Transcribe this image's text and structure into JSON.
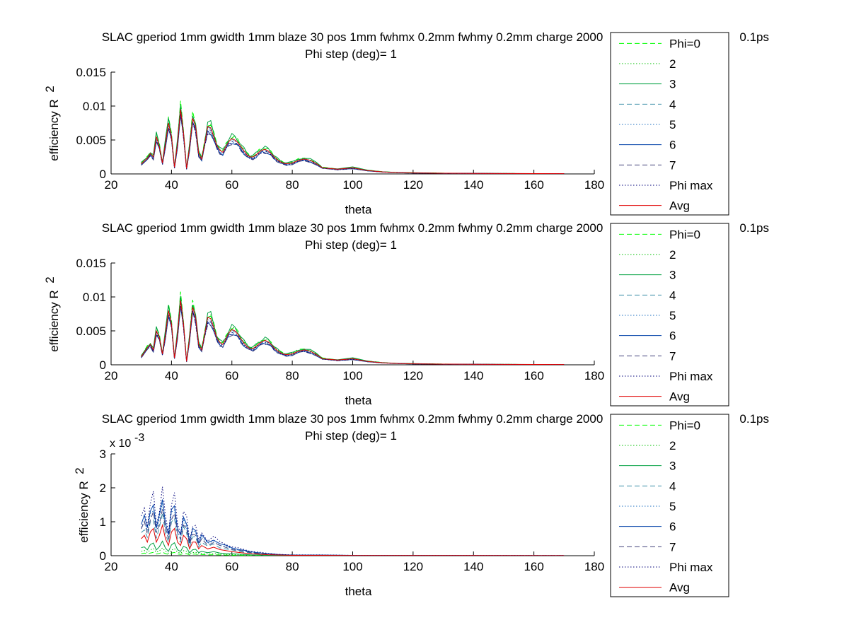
{
  "colors": {
    "phi0": "#00ff00",
    "phi2": "#00bf00",
    "phi3": "#00a040",
    "phi4": "#3a8fa8",
    "phi5": "#1e6fc0",
    "phi6": "#0040a8",
    "phi7": "#40407a",
    "phimax": "#00007a",
    "avg": "#e00000"
  },
  "chart_data": [
    {
      "type": "line",
      "title": "SLAC gperiod 1mm gwidth 1mm blaze 30 pos 1mm fwhmx 0.2mm fwhmy 0.2mm charge 2000",
      "title_tail": "0.1ps",
      "subtitle": "Phi step (deg)= 1",
      "xlabel": "theta",
      "ylabel": "efficiency R",
      "ylabel_sup": "2",
      "xlim": [
        20,
        180
      ],
      "ylim": [
        0,
        0.015
      ],
      "xticks": [
        "20",
        "40",
        "60",
        "80",
        "100",
        "120",
        "140",
        "160",
        "180"
      ],
      "yticks": [
        "0",
        "0.005",
        "0.01",
        "0.015"
      ],
      "exponent_label": "",
      "legend": {
        "placement": "outside-right",
        "entries": [
          "Phi=0",
          "2",
          "3",
          "4",
          "5",
          "6",
          "7",
          "Phi max",
          "Avg"
        ]
      },
      "x": [
        30,
        32,
        33,
        34,
        35,
        36,
        37,
        38,
        39,
        40,
        41,
        42,
        43,
        44,
        45,
        46,
        47,
        48,
        49,
        50,
        51,
        52,
        53,
        54,
        55,
        56,
        57,
        58,
        59,
        60,
        61,
        62,
        63,
        64,
        65,
        66,
        67,
        68,
        69,
        70,
        71,
        72,
        73,
        74,
        75,
        76,
        77,
        78,
        80,
        82,
        84,
        86,
        88,
        90,
        95,
        100,
        105,
        110,
        115,
        120,
        130,
        140,
        150,
        160,
        170
      ],
      "series": [
        {
          "name": "Avg",
          "values": [
            0.0015,
            0.0023,
            0.003,
            0.0025,
            0.0055,
            0.004,
            0.0016,
            0.0045,
            0.0075,
            0.0055,
            0.001,
            0.0045,
            0.0095,
            0.006,
            0.0008,
            0.004,
            0.0082,
            0.007,
            0.003,
            0.0022,
            0.0045,
            0.007,
            0.0068,
            0.0055,
            0.0042,
            0.0035,
            0.0032,
            0.004,
            0.0048,
            0.0052,
            0.005,
            0.0046,
            0.004,
            0.0034,
            0.0028,
            0.0025,
            0.0025,
            0.0028,
            0.0032,
            0.0035,
            0.0036,
            0.0034,
            0.003,
            0.0025,
            0.0021,
            0.0018,
            0.0016,
            0.0015,
            0.0016,
            0.002,
            0.0022,
            0.002,
            0.0015,
            0.0009,
            0.0007,
            0.0009,
            0.0005,
            0.0003,
            0.0002,
            0.00015,
            0.0001,
            8e-05,
            6e-05,
            5e-05,
            4e-05
          ]
        }
      ]
    },
    {
      "type": "line",
      "title": "SLAC gperiod 1mm gwidth 1mm blaze 30 pos 1mm fwhmx 0.2mm fwhmy 0.2mm charge 2000",
      "title_tail": "0.1ps",
      "subtitle": "Phi step (deg)= 1",
      "xlabel": "theta",
      "ylabel": "efficiency R",
      "ylabel_sup": "2",
      "xlim": [
        20,
        180
      ],
      "ylim": [
        0,
        0.015
      ],
      "xticks": [
        "20",
        "40",
        "60",
        "80",
        "100",
        "120",
        "140",
        "160",
        "180"
      ],
      "yticks": [
        "0",
        "0.005",
        "0.01",
        "0.015"
      ],
      "exponent_label": "",
      "legend": {
        "placement": "outside-right",
        "entries": [
          "Phi=0",
          "2",
          "3",
          "4",
          "5",
          "6",
          "7",
          "Phi max",
          "Avg"
        ]
      },
      "x": [
        30,
        32,
        33,
        34,
        35,
        36,
        37,
        38,
        39,
        40,
        41,
        42,
        43,
        44,
        45,
        46,
        47,
        48,
        49,
        50,
        51,
        52,
        53,
        54,
        55,
        56,
        57,
        58,
        59,
        60,
        61,
        62,
        63,
        64,
        65,
        66,
        67,
        68,
        69,
        70,
        71,
        72,
        73,
        74,
        75,
        76,
        77,
        78,
        80,
        82,
        84,
        86,
        88,
        90,
        95,
        100,
        105,
        110,
        115,
        120,
        130,
        140,
        150,
        160,
        170
      ],
      "series": [
        {
          "name": "Avg",
          "values": [
            0.0012,
            0.0025,
            0.003,
            0.0022,
            0.005,
            0.004,
            0.0016,
            0.0045,
            0.008,
            0.006,
            0.001,
            0.0045,
            0.0095,
            0.006,
            0.0005,
            0.004,
            0.0085,
            0.007,
            0.003,
            0.0022,
            0.0045,
            0.007,
            0.0068,
            0.0055,
            0.004,
            0.0033,
            0.003,
            0.0038,
            0.0047,
            0.0052,
            0.005,
            0.0045,
            0.0038,
            0.0032,
            0.0027,
            0.0024,
            0.0024,
            0.0027,
            0.0031,
            0.0034,
            0.0036,
            0.0034,
            0.003,
            0.0025,
            0.0021,
            0.0018,
            0.0016,
            0.0015,
            0.0016,
            0.002,
            0.0022,
            0.002,
            0.0015,
            0.0009,
            0.0007,
            0.0009,
            0.0005,
            0.0003,
            0.0002,
            0.00015,
            0.0001,
            8e-05,
            6e-05,
            5e-05,
            4e-05
          ]
        }
      ]
    },
    {
      "type": "line",
      "title": "SLAC gperiod 1mm gwidth 1mm blaze 30 pos 1mm fwhmx 0.2mm fwhmy 0.2mm charge 2000",
      "title_tail": "0.1ps",
      "subtitle": "Phi step (deg)= 1",
      "xlabel": "theta",
      "ylabel": "efficiency R",
      "ylabel_sup": "2",
      "xlim": [
        20,
        180
      ],
      "ylim": [
        0,
        0.003
      ],
      "xticks": [
        "20",
        "40",
        "60",
        "80",
        "100",
        "120",
        "140",
        "160",
        "180"
      ],
      "yticks": [
        "0",
        "1",
        "2",
        "3"
      ],
      "exponent_label": "x 10",
      "exponent_sup": "-3",
      "legend": {
        "placement": "outside-right",
        "entries": [
          "Phi=0",
          "2",
          "3",
          "4",
          "5",
          "6",
          "7",
          "Phi max",
          "Avg"
        ]
      },
      "x": [
        30,
        31,
        32,
        33,
        34,
        35,
        36,
        37,
        38,
        39,
        40,
        41,
        42,
        43,
        44,
        45,
        46,
        47,
        48,
        49,
        50,
        52,
        54,
        56,
        58,
        60,
        62,
        64,
        66,
        68,
        70,
        72,
        75,
        80,
        90,
        100,
        120,
        140,
        160,
        170
      ],
      "series": [
        {
          "name": "Avg",
          "values": [
            0.0005,
            0.0006,
            0.0004,
            0.0007,
            0.0008,
            0.0004,
            0.0006,
            0.0009,
            0.0005,
            0.0003,
            0.0007,
            0.0008,
            0.0004,
            0.0003,
            0.0006,
            0.0005,
            0.0002,
            0.0004,
            0.0004,
            0.0002,
            0.0003,
            0.0002,
            0.00025,
            0.00018,
            0.00015,
            0.00012,
            0.0001,
            8e-05,
            6e-05,
            5e-05,
            4e-05,
            3e-05,
            2e-05,
            1e-05,
            1e-05,
            5e-06,
            5e-06,
            4e-06,
            3e-06,
            3e-06
          ]
        }
      ]
    }
  ]
}
